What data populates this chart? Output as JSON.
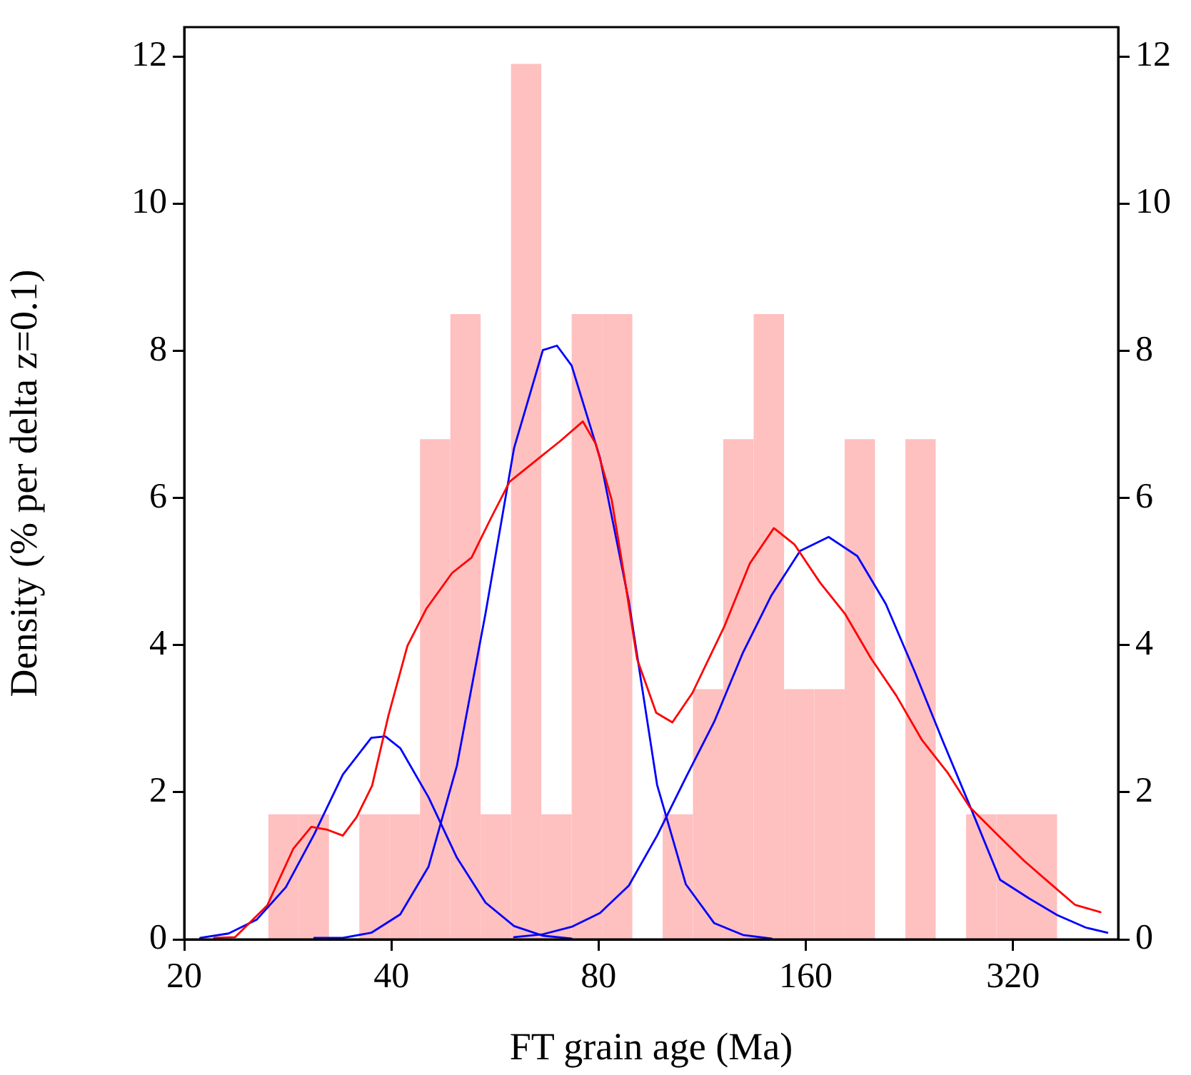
{
  "chart_data": {
    "type": "histogram",
    "xlabel": "FT grain age (Ma)",
    "ylabel": "Density (% per delta z=0.1)",
    "bins": [
      26.5,
      29.33,
      32.46,
      35.93,
      39.77,
      44.02,
      48.72,
      53.92,
      59.68,
      66.05,
      73.11,
      80.92,
      89.56,
      99.13,
      109.7,
      121.4,
      134.4,
      148.8,
      164.7,
      182.2,
      201.7,
      223.3,
      247.1,
      273.5,
      302.7,
      335.1,
      370.9
    ],
    "values": [
      1.7,
      1.7,
      0,
      1.7,
      1.7,
      6.8,
      8.5,
      1.7,
      11.9,
      1.7,
      8.5,
      8.5,
      0,
      1.7,
      3.4,
      6.8,
      8.5,
      3.4,
      3.4,
      6.8,
      0,
      6.8,
      0,
      1.7,
      1.7,
      1.7
    ],
    "color": "#ffc0c0",
    "series": [
      {
        "type": "line",
        "color": "#ff0000",
        "x": [
          22.1,
          23.7,
          26.4,
          28.8,
          30.6,
          32.3,
          34.0,
          35.6,
          37.5,
          39.6,
          42.2,
          45.0,
          49.0,
          52.3,
          55.7,
          59.4,
          66.1,
          70.5,
          75.9,
          79.2,
          83.6,
          87.2,
          91.0,
          97.0,
          102.4,
          109.5,
          121.8,
          132.7,
          143.8,
          154.0,
          167.8,
          182.6,
          199.0,
          216.7,
          236.0,
          257.0,
          276.8,
          304.8,
          332.0,
          361.4,
          393.8,
          428.8
        ],
        "values": [
          0.02,
          0.03,
          0.46,
          1.23,
          1.53,
          1.49,
          1.41,
          1.66,
          2.09,
          3.04,
          3.99,
          4.5,
          4.98,
          5.19,
          5.71,
          6.22,
          6.57,
          6.78,
          7.04,
          6.74,
          5.97,
          4.93,
          3.81,
          3.08,
          2.95,
          3.35,
          4.25,
          5.11,
          5.59,
          5.37,
          4.85,
          4.42,
          3.82,
          3.31,
          2.71,
          2.27,
          1.8,
          1.41,
          1.07,
          0.77,
          0.47,
          0.37
        ]
      },
      {
        "type": "line",
        "color": "#0000ff",
        "x": [
          21.1,
          23.2,
          25.5,
          28.1,
          30.9,
          34.0,
          37.4,
          39.2,
          41.2,
          45.3,
          49.8,
          54.8,
          60.3,
          66.4,
          73.1
        ],
        "values": [
          0.02,
          0.08,
          0.27,
          0.71,
          1.43,
          2.24,
          2.74,
          2.76,
          2.6,
          1.93,
          1.11,
          0.5,
          0.18,
          0.05,
          0.01
        ]
      },
      {
        "type": "line",
        "color": "#0000ff",
        "x": [
          30.9,
          34.0,
          37.4,
          41.2,
          45.3,
          49.8,
          54.8,
          60.3,
          66.4,
          69.6,
          73.1,
          80.4,
          88.5,
          97.3,
          107.1,
          117.8,
          129.7,
          142.7
        ],
        "values": [
          0.02,
          0.02,
          0.09,
          0.34,
          0.99,
          2.36,
          4.43,
          6.68,
          8.01,
          8.07,
          7.8,
          6.54,
          4.6,
          2.1,
          0.75,
          0.22,
          0.06,
          0.01
        ]
      },
      {
        "type": "line",
        "color": "#0000ff",
        "x": [
          60.3,
          66.4,
          73.1,
          80.4,
          88.5,
          97.3,
          107.1,
          117.8,
          129.7,
          142.7,
          157.0,
          172.7,
          190.1,
          209.1,
          230.1,
          253.2,
          278.6,
          306.5,
          337.3,
          371.1,
          408.4,
          438.8
        ],
        "values": [
          0.03,
          0.07,
          0.17,
          0.36,
          0.73,
          1.41,
          2.2,
          2.96,
          3.9,
          4.68,
          5.28,
          5.47,
          5.21,
          4.56,
          3.65,
          2.69,
          1.76,
          0.81,
          0.56,
          0.33,
          0.16,
          0.09
        ]
      }
    ],
    "xlim": [
      20,
      455
    ],
    "xticks": [
      20,
      40,
      80,
      160,
      320
    ],
    "log": "x",
    "ylim": [
      0,
      12.4
    ],
    "yticks": [
      0,
      2,
      4,
      6,
      8,
      10,
      12
    ],
    "y2lim": [
      0,
      12.4
    ],
    "y2ticks": [
      0,
      2,
      4,
      6,
      8,
      10,
      12
    ],
    "grid": false,
    "legend": false,
    "marker": "none",
    "line_style": "solid"
  }
}
